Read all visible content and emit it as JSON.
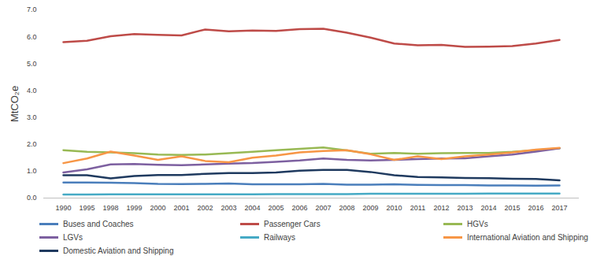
{
  "chart_data": {
    "type": "line",
    "y_label": "MtCO₂e",
    "x": [
      1990,
      1995,
      1998,
      1999,
      2000,
      2001,
      2002,
      2003,
      2004,
      2005,
      2006,
      2007,
      2008,
      2009,
      2010,
      2011,
      2012,
      2013,
      2014,
      2015,
      2016,
      2017
    ],
    "ylim": [
      0,
      7
    ],
    "yticks": [
      0,
      1,
      2,
      3,
      4,
      5,
      6,
      7
    ],
    "grid": false,
    "legend": "bottom",
    "series": [
      {
        "name": "Buses and Coaches",
        "color": "#4a7ebb",
        "values": [
          0.58,
          0.58,
          0.57,
          0.56,
          0.53,
          0.52,
          0.53,
          0.54,
          0.51,
          0.51,
          0.51,
          0.53,
          0.5,
          0.5,
          0.51,
          0.49,
          0.48,
          0.48,
          0.47,
          0.47,
          0.46,
          0.47
        ]
      },
      {
        "name": "Passenger Cars",
        "color": "#be4b48",
        "values": [
          5.8,
          5.85,
          6.02,
          6.1,
          6.07,
          6.05,
          6.27,
          6.2,
          6.23,
          6.22,
          6.28,
          6.3,
          6.15,
          5.97,
          5.75,
          5.68,
          5.7,
          5.62,
          5.63,
          5.65,
          5.75,
          5.88
        ]
      },
      {
        "name": "HGVs",
        "color": "#98b954",
        "values": [
          1.78,
          1.72,
          1.7,
          1.67,
          1.62,
          1.6,
          1.62,
          1.67,
          1.72,
          1.78,
          1.83,
          1.88,
          1.77,
          1.65,
          1.68,
          1.65,
          1.67,
          1.68,
          1.68,
          1.72,
          1.78,
          1.85
        ]
      },
      {
        "name": "LGVs",
        "color": "#7d60a0",
        "values": [
          0.95,
          1.07,
          1.25,
          1.27,
          1.24,
          1.22,
          1.25,
          1.28,
          1.3,
          1.35,
          1.4,
          1.47,
          1.42,
          1.4,
          1.42,
          1.45,
          1.47,
          1.48,
          1.55,
          1.62,
          1.73,
          1.85
        ]
      },
      {
        "name": "Railways",
        "color": "#46aac5",
        "values": [
          0.13,
          0.13,
          0.14,
          0.14,
          0.14,
          0.14,
          0.14,
          0.14,
          0.14,
          0.15,
          0.15,
          0.15,
          0.15,
          0.16,
          0.16,
          0.16,
          0.16,
          0.16,
          0.17,
          0.17,
          0.17,
          0.17
        ]
      },
      {
        "name": "International Aviation and Shipping",
        "color": "#f79646",
        "values": [
          1.3,
          1.47,
          1.73,
          1.58,
          1.42,
          1.55,
          1.38,
          1.33,
          1.5,
          1.58,
          1.7,
          1.75,
          1.78,
          1.63,
          1.42,
          1.55,
          1.45,
          1.55,
          1.62,
          1.7,
          1.8,
          1.87
        ]
      },
      {
        "name": "Domestic Aviation and Shipping",
        "color": "#1f3a5f",
        "values": [
          0.85,
          0.85,
          0.73,
          0.82,
          0.86,
          0.86,
          0.9,
          0.93,
          0.93,
          0.95,
          1.02,
          1.05,
          1.05,
          0.97,
          0.85,
          0.78,
          0.77,
          0.75,
          0.74,
          0.72,
          0.71,
          0.66
        ]
      }
    ]
  }
}
